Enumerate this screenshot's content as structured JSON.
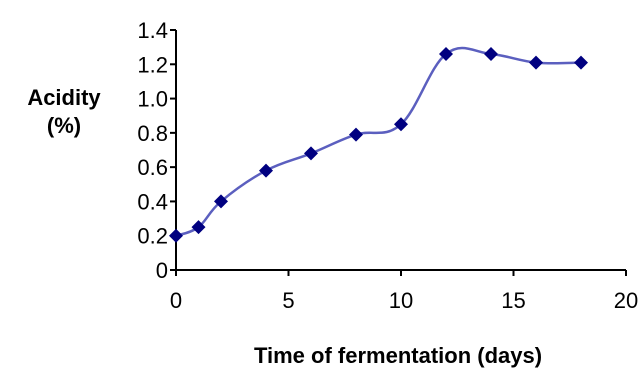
{
  "chart_data": {
    "type": "line",
    "title": "",
    "xlabel": "Time of fermentation (days)",
    "ylabel_line1": "Acidity",
    "ylabel_line2": "(%)",
    "xlim": [
      0,
      20
    ],
    "ylim": [
      0,
      1.4
    ],
    "x_ticks": [
      "0",
      "5",
      "10",
      "15",
      "20"
    ],
    "y_ticks": [
      "0",
      "0.2",
      "0.4",
      "0.6",
      "0.8",
      "1.0",
      "1.2",
      "1.4"
    ],
    "grid": false,
    "legend": "none",
    "series": [
      {
        "color": "#5b5fbf",
        "marker_color": "#000080",
        "x": [
          0,
          1,
          2,
          4,
          6,
          8,
          10,
          12,
          14,
          16,
          18
        ],
        "y": [
          0.2,
          0.25,
          0.4,
          0.58,
          0.68,
          0.79,
          0.85,
          1.26,
          1.26,
          1.21,
          1.21
        ]
      }
    ]
  }
}
